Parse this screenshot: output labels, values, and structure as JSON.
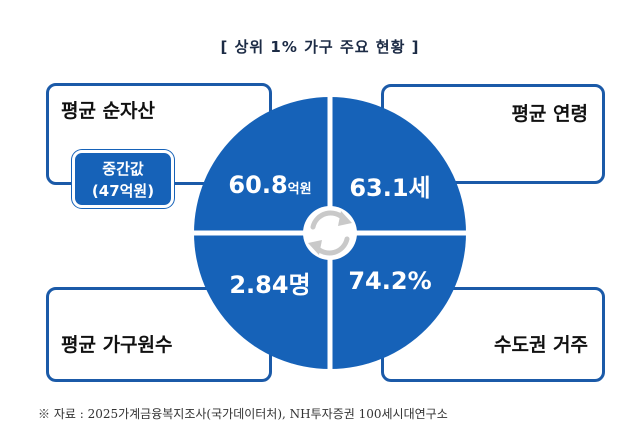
{
  "title": "[ 상위 1% 가구 주요 현황 ]",
  "quadrants": {
    "top_left": {
      "label": "평균 순자산",
      "value": "60.8",
      "unit": "억원"
    },
    "top_right": {
      "label": "평균 연령",
      "value": "63.1세"
    },
    "bottom_left": {
      "label": "평균 가구원수",
      "value": "2.84명"
    },
    "bottom_right": {
      "label": "수도권 거주",
      "value": "74.2%"
    }
  },
  "median": {
    "line1": "중간값",
    "line2": "(47억원)"
  },
  "source": "※ 자료 : 2025가계금융복지조사(국가데이터처), NH투자증권 100세시대연구소",
  "colors": {
    "accent": "#1662b8",
    "border": "#1b5aa8",
    "arrows": "#c9c9c9"
  },
  "icons": {
    "center": "cycle-arrows-icon"
  }
}
